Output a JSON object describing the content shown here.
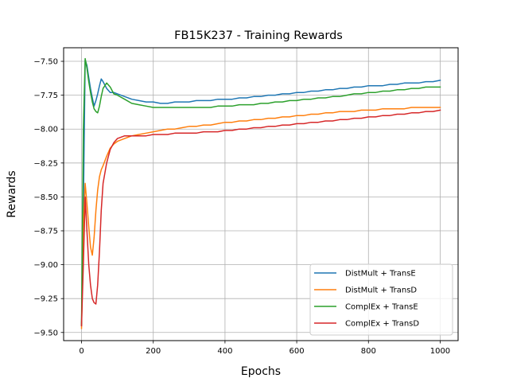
{
  "chart_data": {
    "type": "line",
    "title": "FB15K237 - Training Rewards",
    "xlabel": "Epochs",
    "ylabel": "Rewards",
    "xlim": [
      -50,
      1050
    ],
    "ylim": [
      -9.56,
      -7.4
    ],
    "xticks": [
      0,
      200,
      400,
      600,
      800,
      1000
    ],
    "yticks": [
      -9.5,
      -9.25,
      -9.0,
      -8.75,
      -8.5,
      -8.25,
      -8.0,
      -7.75,
      -7.5
    ],
    "ytick_labels": [
      "−9.50",
      "−9.25",
      "−9.00",
      "−8.75",
      "−8.50",
      "−8.25",
      "−8.00",
      "−7.75",
      "−7.50"
    ],
    "grid": true,
    "legend_position": "lower-right",
    "series": [
      {
        "name": "DistMult + TransE",
        "color": "#1f77b4",
        "x": [
          0,
          5,
          10,
          15,
          20,
          25,
          30,
          35,
          40,
          45,
          50,
          55,
          60,
          70,
          80,
          90,
          100,
          120,
          140,
          160,
          180,
          200,
          220,
          240,
          260,
          280,
          300,
          320,
          340,
          360,
          380,
          400,
          420,
          440,
          460,
          480,
          500,
          520,
          540,
          560,
          580,
          600,
          620,
          640,
          660,
          680,
          700,
          720,
          740,
          760,
          780,
          800,
          820,
          840,
          860,
          880,
          900,
          920,
          940,
          960,
          980,
          1000
        ],
        "y": [
          -9.45,
          -8.6,
          -7.49,
          -7.53,
          -7.62,
          -7.7,
          -7.77,
          -7.83,
          -7.79,
          -7.74,
          -7.68,
          -7.63,
          -7.65,
          -7.7,
          -7.73,
          -7.73,
          -7.74,
          -7.76,
          -7.78,
          -7.79,
          -7.8,
          -7.8,
          -7.81,
          -7.81,
          -7.8,
          -7.8,
          -7.8,
          -7.79,
          -7.79,
          -7.79,
          -7.78,
          -7.78,
          -7.78,
          -7.77,
          -7.77,
          -7.76,
          -7.76,
          -7.75,
          -7.75,
          -7.74,
          -7.74,
          -7.73,
          -7.73,
          -7.72,
          -7.72,
          -7.71,
          -7.71,
          -7.7,
          -7.7,
          -7.69,
          -7.69,
          -7.68,
          -7.68,
          -7.68,
          -7.67,
          -7.67,
          -7.66,
          -7.66,
          -7.66,
          -7.65,
          -7.65,
          -7.64
        ]
      },
      {
        "name": "DistMult + TransD",
        "color": "#ff7f0e",
        "x": [
          0,
          5,
          10,
          15,
          20,
          25,
          30,
          35,
          40,
          45,
          50,
          55,
          60,
          70,
          80,
          90,
          100,
          120,
          140,
          160,
          180,
          200,
          220,
          240,
          260,
          280,
          300,
          320,
          340,
          360,
          380,
          400,
          420,
          440,
          460,
          480,
          500,
          520,
          540,
          560,
          580,
          600,
          620,
          640,
          660,
          680,
          700,
          720,
          740,
          760,
          780,
          800,
          820,
          840,
          860,
          880,
          900,
          920,
          940,
          960,
          980,
          1000
        ],
        "y": [
          -9.47,
          -8.7,
          -8.4,
          -8.55,
          -8.72,
          -8.87,
          -8.93,
          -8.8,
          -8.6,
          -8.45,
          -8.35,
          -8.3,
          -8.27,
          -8.2,
          -8.14,
          -8.11,
          -8.09,
          -8.07,
          -8.05,
          -8.04,
          -8.03,
          -8.02,
          -8.01,
          -8.0,
          -8.0,
          -7.99,
          -7.98,
          -7.98,
          -7.97,
          -7.97,
          -7.96,
          -7.95,
          -7.95,
          -7.94,
          -7.94,
          -7.93,
          -7.93,
          -7.92,
          -7.92,
          -7.91,
          -7.91,
          -7.9,
          -7.9,
          -7.89,
          -7.89,
          -7.88,
          -7.88,
          -7.87,
          -7.87,
          -7.87,
          -7.86,
          -7.86,
          -7.86,
          -7.85,
          -7.85,
          -7.85,
          -7.85,
          -7.84,
          -7.84,
          -7.84,
          -7.84,
          -7.84
        ]
      },
      {
        "name": "ComplEx + TransE",
        "color": "#2ca02c",
        "x": [
          0,
          5,
          10,
          15,
          20,
          25,
          30,
          35,
          40,
          45,
          50,
          55,
          60,
          70,
          80,
          90,
          100,
          120,
          140,
          160,
          180,
          200,
          220,
          240,
          260,
          280,
          300,
          320,
          340,
          360,
          380,
          400,
          420,
          440,
          460,
          480,
          500,
          520,
          540,
          560,
          580,
          600,
          620,
          640,
          660,
          680,
          700,
          720,
          740,
          760,
          780,
          800,
          820,
          840,
          860,
          880,
          900,
          920,
          940,
          960,
          980,
          1000
        ],
        "y": [
          -9.44,
          -8.0,
          -7.48,
          -7.55,
          -7.65,
          -7.73,
          -7.8,
          -7.85,
          -7.87,
          -7.88,
          -7.83,
          -7.76,
          -7.7,
          -7.66,
          -7.69,
          -7.74,
          -7.75,
          -7.78,
          -7.81,
          -7.82,
          -7.83,
          -7.84,
          -7.84,
          -7.84,
          -7.84,
          -7.84,
          -7.84,
          -7.84,
          -7.84,
          -7.84,
          -7.83,
          -7.83,
          -7.83,
          -7.82,
          -7.82,
          -7.82,
          -7.81,
          -7.81,
          -7.8,
          -7.8,
          -7.79,
          -7.79,
          -7.78,
          -7.78,
          -7.77,
          -7.77,
          -7.76,
          -7.76,
          -7.75,
          -7.74,
          -7.74,
          -7.73,
          -7.73,
          -7.72,
          -7.72,
          -7.71,
          -7.71,
          -7.7,
          -7.7,
          -7.69,
          -7.69,
          -7.69
        ]
      },
      {
        "name": "ComplEx + TransD",
        "color": "#d62728",
        "x": [
          0,
          5,
          10,
          15,
          20,
          25,
          30,
          35,
          40,
          45,
          50,
          55,
          60,
          70,
          80,
          90,
          100,
          120,
          140,
          160,
          180,
          200,
          220,
          240,
          260,
          280,
          300,
          320,
          340,
          360,
          380,
          400,
          420,
          440,
          460,
          480,
          500,
          520,
          540,
          560,
          580,
          600,
          620,
          640,
          660,
          680,
          700,
          720,
          740,
          760,
          780,
          800,
          820,
          840,
          860,
          880,
          900,
          920,
          940,
          960,
          980,
          1000
        ],
        "y": [
          -9.45,
          -9.0,
          -8.5,
          -8.75,
          -9.0,
          -9.15,
          -9.25,
          -9.28,
          -9.29,
          -9.15,
          -8.9,
          -8.6,
          -8.4,
          -8.25,
          -8.15,
          -8.1,
          -8.07,
          -8.05,
          -8.05,
          -8.05,
          -8.05,
          -8.04,
          -8.04,
          -8.04,
          -8.03,
          -8.03,
          -8.03,
          -8.03,
          -8.02,
          -8.02,
          -8.02,
          -8.01,
          -8.01,
          -8.0,
          -8.0,
          -7.99,
          -7.99,
          -7.98,
          -7.98,
          -7.97,
          -7.97,
          -7.96,
          -7.96,
          -7.95,
          -7.95,
          -7.94,
          -7.94,
          -7.93,
          -7.93,
          -7.92,
          -7.92,
          -7.91,
          -7.91,
          -7.9,
          -7.9,
          -7.89,
          -7.89,
          -7.88,
          -7.88,
          -7.87,
          -7.87,
          -7.86
        ]
      }
    ]
  }
}
